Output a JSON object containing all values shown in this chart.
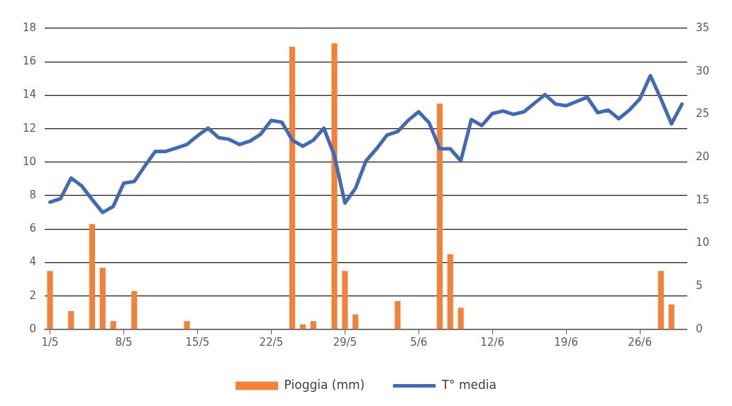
{
  "chart_data": {
    "type": "bar",
    "categories": [
      "1/5",
      null,
      null,
      null,
      null,
      null,
      null,
      "8/5",
      null,
      null,
      null,
      null,
      null,
      null,
      "15/5",
      null,
      null,
      null,
      null,
      null,
      null,
      "22/5",
      null,
      null,
      null,
      null,
      null,
      null,
      "29/5",
      null,
      null,
      null,
      null,
      null,
      null,
      "5/6",
      null,
      null,
      null,
      null,
      null,
      null,
      "12/6",
      null,
      null,
      null,
      null,
      null,
      null,
      "19/6",
      null,
      null,
      null,
      null,
      null,
      null,
      "26/6",
      null,
      null,
      null,
      null
    ],
    "series": [
      {
        "name": "Pioggia (mm)",
        "color": "#f4813a",
        "values": [
          3.5,
          0,
          1.1,
          0,
          6.3,
          3.7,
          0.5,
          0,
          2.3,
          0,
          0,
          0,
          0,
          0.5,
          0,
          0,
          0,
          0,
          0,
          0,
          0,
          0,
          0,
          16.9,
          0.3,
          0.5,
          0,
          17.1,
          3.5,
          0.9,
          0,
          0,
          0,
          1.7,
          0,
          0,
          0,
          13.5,
          4.5,
          1.3,
          0,
          0,
          0,
          0,
          0,
          0,
          0,
          0,
          0,
          0,
          0,
          0,
          0,
          0,
          0,
          0,
          0,
          0,
          3.5,
          1.5,
          0
        ]
      },
      {
        "name": "T° media",
        "type": "line",
        "axis": "y2",
        "color": "#4169b4",
        "values": [
          14.8,
          15.2,
          17.6,
          16.7,
          15.1,
          13.6,
          14.3,
          17.0,
          17.2,
          19.0,
          20.7,
          20.7,
          21.1,
          21.5,
          22.5,
          23.4,
          22.3,
          22.1,
          21.5,
          21.9,
          22.7,
          24.3,
          24.1,
          22.0,
          21.3,
          22.0,
          23.4,
          20.2,
          14.7,
          16.4,
          19.6,
          21.0,
          22.6,
          23.0,
          24.3,
          25.3,
          24.0,
          21.0,
          21.0,
          19.6,
          24.4,
          23.7,
          25.1,
          25.4,
          25.0,
          25.3,
          26.3,
          27.3,
          26.2,
          26.0,
          26.5,
          27.0,
          25.2,
          25.5,
          24.5,
          25.5,
          26.8,
          29.5,
          26.8,
          23.9,
          26.2
        ]
      }
    ],
    "ylim": [
      0,
      18
    ],
    "yticks": [
      0,
      2,
      4,
      6,
      8,
      10,
      12,
      14,
      16,
      18
    ],
    "y2lim": [
      0,
      35
    ],
    "y2ticks": [
      0,
      5,
      10,
      15,
      20,
      25,
      30,
      35
    ],
    "grid": "y",
    "legend": "bottom"
  }
}
